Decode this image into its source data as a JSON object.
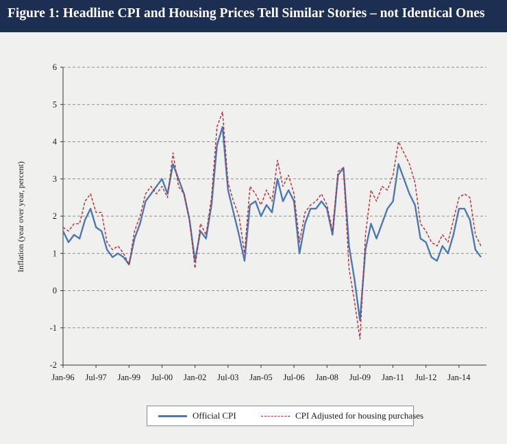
{
  "figure": {
    "title": "Figure 1: Headline CPI and Housing Prices Tell Similar Stories – not Identical Ones"
  },
  "colors": {
    "header_bg": "#1c2e52",
    "official_cpi": "#4a78b6",
    "cpi_adjusted": "#c2282b"
  },
  "chart_data": {
    "type": "line",
    "title": "Figure 1: Headline CPI and Housing Prices Tell Similar Stories – not Identical Ones",
    "xlabel": "",
    "ylabel": "Inflation (year over year, percent)",
    "ylim": [
      -2,
      6
    ],
    "yticks": [
      -2,
      -1,
      0,
      1,
      2,
      3,
      4,
      5,
      6
    ],
    "xtick_labels": [
      "Jan-96",
      "Jul-97",
      "Jan-99",
      "Jul-00",
      "Jan-02",
      "Jul-03",
      "Jan-05",
      "Jul-06",
      "Jan-08",
      "Jul-09",
      "Jan-11",
      "Jul-12",
      "Jan-14"
    ],
    "x_start": "Jan-96",
    "frequency": "monthly",
    "grid": "horizontal dashed",
    "legend_position": "bottom",
    "series": [
      {
        "name": "Official CPI",
        "style": "solid",
        "values": [
          [
            1996.0,
            1.6
          ],
          [
            1996.25,
            1.3
          ],
          [
            1996.5,
            1.5
          ],
          [
            1996.75,
            1.4
          ],
          [
            1997.0,
            1.9
          ],
          [
            1997.25,
            2.2
          ],
          [
            1997.5,
            1.7
          ],
          [
            1997.75,
            1.6
          ],
          [
            1998.0,
            1.1
          ],
          [
            1998.25,
            0.9
          ],
          [
            1998.5,
            1.0
          ],
          [
            1998.75,
            0.9
          ],
          [
            1999.0,
            0.7
          ],
          [
            1999.25,
            1.4
          ],
          [
            1999.5,
            1.8
          ],
          [
            1999.75,
            2.4
          ],
          [
            2000.0,
            2.6
          ],
          [
            2000.25,
            2.8
          ],
          [
            2000.5,
            3.0
          ],
          [
            2000.75,
            2.6
          ],
          [
            2001.0,
            3.4
          ],
          [
            2001.25,
            3.0
          ],
          [
            2001.5,
            2.6
          ],
          [
            2001.75,
            1.9
          ],
          [
            2002.0,
            0.8
          ],
          [
            2002.25,
            1.6
          ],
          [
            2002.5,
            1.4
          ],
          [
            2002.75,
            2.3
          ],
          [
            2003.0,
            3.9
          ],
          [
            2003.25,
            4.4
          ],
          [
            2003.5,
            2.7
          ],
          [
            2003.75,
            2.1
          ],
          [
            2004.0,
            1.5
          ],
          [
            2004.25,
            0.8
          ],
          [
            2004.5,
            2.3
          ],
          [
            2004.75,
            2.4
          ],
          [
            2005.0,
            2.0
          ],
          [
            2005.25,
            2.3
          ],
          [
            2005.5,
            2.1
          ],
          [
            2005.75,
            3.0
          ],
          [
            2006.0,
            2.4
          ],
          [
            2006.25,
            2.7
          ],
          [
            2006.5,
            2.4
          ],
          [
            2006.75,
            1.0
          ],
          [
            2007.0,
            1.8
          ],
          [
            2007.25,
            2.2
          ],
          [
            2007.5,
            2.2
          ],
          [
            2007.75,
            2.4
          ],
          [
            2008.0,
            2.2
          ],
          [
            2008.25,
            1.5
          ],
          [
            2008.5,
            3.1
          ],
          [
            2008.75,
            3.3
          ],
          [
            2009.0,
            1.2
          ],
          [
            2009.25,
            0.3
          ],
          [
            2009.5,
            -0.8
          ],
          [
            2009.75,
            1.1
          ],
          [
            2010.0,
            1.8
          ],
          [
            2010.25,
            1.4
          ],
          [
            2010.5,
            1.8
          ],
          [
            2010.75,
            2.2
          ],
          [
            2011.0,
            2.4
          ],
          [
            2011.25,
            3.4
          ],
          [
            2011.5,
            3.0
          ],
          [
            2011.75,
            2.6
          ],
          [
            2012.0,
            2.3
          ],
          [
            2012.25,
            1.4
          ],
          [
            2012.5,
            1.3
          ],
          [
            2012.75,
            0.9
          ],
          [
            2013.0,
            0.8
          ],
          [
            2013.25,
            1.2
          ],
          [
            2013.5,
            1.0
          ],
          [
            2013.75,
            1.5
          ],
          [
            2014.0,
            2.2
          ],
          [
            2014.25,
            2.2
          ],
          [
            2014.5,
            1.9
          ],
          [
            2014.75,
            1.1
          ],
          [
            2015.0,
            0.9
          ]
        ]
      },
      {
        "name": "CPI Adjusted for housing purchases",
        "style": "dashed",
        "values": [
          [
            1996.0,
            1.7
          ],
          [
            1996.25,
            1.6
          ],
          [
            1996.5,
            1.8
          ],
          [
            1996.75,
            1.8
          ],
          [
            1997.0,
            2.4
          ],
          [
            1997.25,
            2.6
          ],
          [
            1997.5,
            2.1
          ],
          [
            1997.75,
            2.1
          ],
          [
            1998.0,
            1.3
          ],
          [
            1998.25,
            1.1
          ],
          [
            1998.5,
            1.2
          ],
          [
            1998.75,
            1.0
          ],
          [
            1999.0,
            0.7
          ],
          [
            1999.25,
            1.6
          ],
          [
            1999.5,
            2.0
          ],
          [
            1999.75,
            2.6
          ],
          [
            2000.0,
            2.8
          ],
          [
            2000.25,
            2.6
          ],
          [
            2000.5,
            2.8
          ],
          [
            2000.75,
            2.5
          ],
          [
            2001.0,
            3.7
          ],
          [
            2001.25,
            2.8
          ],
          [
            2001.5,
            2.6
          ],
          [
            2001.75,
            1.9
          ],
          [
            2002.0,
            0.6
          ],
          [
            2002.25,
            1.8
          ],
          [
            2002.5,
            1.5
          ],
          [
            2002.75,
            2.5
          ],
          [
            2003.0,
            4.4
          ],
          [
            2003.25,
            4.8
          ],
          [
            2003.5,
            2.9
          ],
          [
            2003.75,
            2.4
          ],
          [
            2004.0,
            2.0
          ],
          [
            2004.25,
            1.0
          ],
          [
            2004.5,
            2.8
          ],
          [
            2004.75,
            2.6
          ],
          [
            2005.0,
            2.3
          ],
          [
            2005.25,
            2.7
          ],
          [
            2005.5,
            2.4
          ],
          [
            2005.75,
            3.5
          ],
          [
            2006.0,
            2.8
          ],
          [
            2006.25,
            3.1
          ],
          [
            2006.5,
            2.6
          ],
          [
            2006.75,
            1.3
          ],
          [
            2007.0,
            2.1
          ],
          [
            2007.25,
            2.3
          ],
          [
            2007.5,
            2.4
          ],
          [
            2007.75,
            2.6
          ],
          [
            2008.0,
            2.3
          ],
          [
            2008.25,
            1.6
          ],
          [
            2008.5,
            3.2
          ],
          [
            2008.75,
            3.3
          ],
          [
            2009.0,
            0.6
          ],
          [
            2009.25,
            -0.3
          ],
          [
            2009.5,
            -1.3
          ],
          [
            2009.75,
            1.5
          ],
          [
            2010.0,
            2.7
          ],
          [
            2010.25,
            2.4
          ],
          [
            2010.5,
            2.8
          ],
          [
            2010.75,
            2.7
          ],
          [
            2011.0,
            3.1
          ],
          [
            2011.25,
            4.0
          ],
          [
            2011.5,
            3.7
          ],
          [
            2011.75,
            3.4
          ],
          [
            2012.0,
            2.9
          ],
          [
            2012.25,
            1.8
          ],
          [
            2012.5,
            1.6
          ],
          [
            2012.75,
            1.3
          ],
          [
            2013.0,
            1.2
          ],
          [
            2013.25,
            1.5
          ],
          [
            2013.5,
            1.3
          ],
          [
            2013.75,
            1.9
          ],
          [
            2014.0,
            2.5
          ],
          [
            2014.25,
            2.6
          ],
          [
            2014.5,
            2.5
          ],
          [
            2014.75,
            1.5
          ],
          [
            2015.0,
            1.2
          ]
        ]
      }
    ]
  }
}
